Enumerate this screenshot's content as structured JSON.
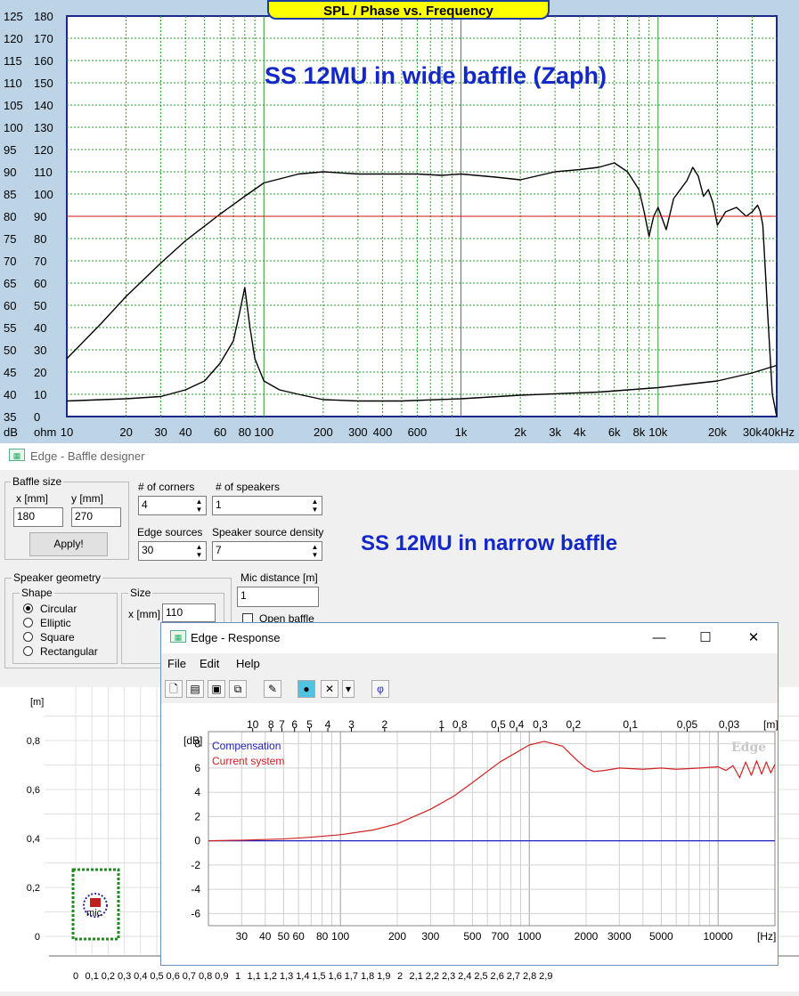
{
  "spl_chart": {
    "title": "SPL / Phase vs. Frequency",
    "subtitle": "SS 12MU in wide baffle (Zaph)",
    "db_ticks": [
      "125",
      "120",
      "115",
      "110",
      "105",
      "100",
      "95",
      "90",
      "85",
      "80",
      "75",
      "70",
      "65",
      "60",
      "55",
      "50",
      "45",
      "40",
      "35"
    ],
    "ohm_ticks": [
      "180",
      "170",
      "160",
      "150",
      "140",
      "130",
      "120",
      "110",
      "100",
      "90",
      "80",
      "70",
      "60",
      "50",
      "40",
      "30",
      "20",
      "10",
      "0"
    ],
    "db_unit": "dB",
    "ohm_unit": "ohm",
    "freq_ticks": [
      "10",
      "20",
      "30",
      "40",
      "60",
      "80",
      "100",
      "200",
      "300",
      "400",
      "600",
      "1k",
      "2k",
      "3k",
      "4k",
      "6k",
      "8k",
      "10k",
      "20k",
      "30k",
      "40kHz"
    ],
    "colors": {
      "background": "#bcd4e6",
      "plot": "#ffffff",
      "grid": "#2e9a2e",
      "ref_line": "#d01010",
      "trace": "#000000",
      "title_bg": "#ffff00",
      "subtitle": "#1428c8"
    }
  },
  "chart_data": [
    {
      "type": "line",
      "title": "SPL / Phase vs. Frequency",
      "xlabel": "",
      "ylabel": "dB",
      "xscale": "log",
      "xlim": [
        10,
        40000
      ],
      "ylim": [
        35,
        125
      ],
      "grid": true,
      "series": [
        {
          "x": [
            10,
            15,
            20,
            30,
            40,
            60,
            80,
            100,
            150,
            200,
            300,
            400,
            600,
            800,
            1000,
            1500,
            2000,
            3000,
            4000,
            5000,
            6000,
            7000,
            8000,
            8500,
            9000,
            9500,
            10000,
            11000,
            12000,
            14000,
            15000,
            16000,
            17000,
            18000,
            19000,
            20000,
            22000,
            25000,
            28000,
            30000,
            32000,
            33000,
            34000,
            35000,
            36000,
            38000,
            40000
          ],
          "y": [
            48,
            56,
            62,
            69.5,
            74.5,
            80.5,
            84.5,
            87.5,
            89.5,
            90,
            89.5,
            89.5,
            89.5,
            89.2,
            89.5,
            88.8,
            88.2,
            90,
            90.5,
            91,
            92,
            90,
            86,
            81,
            75.5,
            80,
            82,
            77,
            84,
            88,
            91,
            89,
            84.5,
            86,
            83,
            78,
            81,
            82,
            80,
            81,
            82.5,
            81,
            78,
            68,
            58,
            40,
            35
          ]
        },
        {
          "x": [
            10,
            20,
            30,
            40,
            50,
            60,
            70,
            75,
            80,
            85,
            90,
            100,
            120,
            150,
            200,
            300,
            500,
            1000,
            2000,
            5000,
            10000,
            20000,
            30000,
            40000
          ],
          "y": [
            38.5,
            39,
            39.5,
            41,
            43,
            47,
            52,
            58,
            64,
            55,
            48,
            43,
            41,
            40,
            38.8,
            38.5,
            38.5,
            39,
            39.8,
            40.5,
            41.5,
            43,
            44.8,
            46.5
          ]
        },
        {
          "x": [
            10,
            40000
          ],
          "y": [
            80,
            80
          ]
        }
      ]
    },
    {
      "type": "line",
      "xlabel": "[Hz]",
      "ylabel": "[dB]",
      "xscale": "log",
      "xlim": [
        20,
        20000
      ],
      "ylim": [
        -7,
        9
      ],
      "grid": true,
      "series": [
        {
          "name": "Compensation",
          "color": "#2020c0",
          "x": [
            20,
            20000
          ],
          "y": [
            0,
            0
          ]
        },
        {
          "name": "Current system",
          "color": "#d02020",
          "x": [
            20,
            30,
            50,
            70,
            100,
            150,
            200,
            300,
            400,
            500,
            700,
            1000,
            1200,
            1500,
            1800,
            2000,
            2200,
            2500,
            3000,
            4000,
            5000,
            6000,
            8000,
            10000,
            11000,
            12000,
            13000,
            14000,
            15000,
            16000,
            17000,
            18000,
            19000,
            20000
          ],
          "y": [
            0,
            0.05,
            0.15,
            0.3,
            0.5,
            0.9,
            1.4,
            2.6,
            3.7,
            4.8,
            6.5,
            7.9,
            8.2,
            7.8,
            6.6,
            6.0,
            5.7,
            5.8,
            6.0,
            5.9,
            6.0,
            5.9,
            6.0,
            6.1,
            5.8,
            6.2,
            5.2,
            6.5,
            5.4,
            6.6,
            5.5,
            6.5,
            5.6,
            6.3
          ]
        }
      ]
    }
  ],
  "baffle_window": {
    "title": "Edge - Baffle designer",
    "caption": "SS 12MU in narrow baffle",
    "baffle_size": {
      "group_label": "Baffle size",
      "x_label": "x [mm]",
      "y_label": "y [mm]",
      "x_value": "180",
      "y_value": "270",
      "apply_label": "Apply!"
    },
    "corners": {
      "label": "# of corners",
      "value": "4"
    },
    "speakers": {
      "label": "# of speakers",
      "value": "1"
    },
    "edge_sources": {
      "label": "Edge sources",
      "value": "30"
    },
    "speaker_density": {
      "label": "Speaker source density",
      "value": "7"
    },
    "mic_distance": {
      "label": "Mic distance [m]",
      "value": "1"
    },
    "open_baffle": {
      "label": "Open baffle",
      "checked": false
    },
    "speaker_geometry": {
      "group_label": "Speaker geometry",
      "shape_label": "Shape",
      "shapes": [
        "Circular",
        "Elliptic",
        "Square",
        "Rectangular"
      ],
      "selected_shape": "Circular",
      "size_label": "Size",
      "size_x_label": "x [mm]",
      "size_x_value": "110"
    },
    "plot": {
      "unit": "[m]",
      "y_ticks": [
        "0,8",
        "0,6",
        "0,4",
        "0,2",
        "0"
      ],
      "x_ticks": [
        "0",
        "0,1",
        "0,2",
        "0,3",
        "0,4",
        "0,5",
        "0,6",
        "0,7",
        "0,8",
        "0,9",
        "1",
        "1,1",
        "1,2",
        "1,3",
        "1,4",
        "1,5",
        "1,6",
        "1,7",
        "1,8",
        "1,9",
        "2",
        "2,1",
        "2,2",
        "2,3",
        "2,4",
        "2,5",
        "2,6",
        "2,7",
        "2,8",
        "2,9"
      ],
      "mic_label": "mic"
    }
  },
  "response_window": {
    "title": "Edge - Response",
    "controls": {
      "minimize": "—",
      "maximize": "☐",
      "close": "✕"
    },
    "menu": [
      "File",
      "Edit",
      "Help"
    ],
    "toolbar": {
      "phi": "φ"
    },
    "chart": {
      "y_unit": "[dB]",
      "x_unit": "[Hz]",
      "top_unit": "[m]",
      "watermark": "Edge",
      "legend": [
        "Compensation",
        "Current system"
      ],
      "y_ticks": [
        "8",
        "6",
        "4",
        "2",
        "0",
        "-2",
        "-4",
        "-6"
      ],
      "x_ticks": [
        "30",
        "40",
        "50",
        "60",
        "80",
        "100",
        "200",
        "300",
        "500",
        "700",
        "1000",
        "2000",
        "3000",
        "5000",
        "10000"
      ],
      "top_ticks": [
        "10",
        "8",
        "7",
        "6",
        "5",
        "4",
        "3",
        "2",
        "1",
        "0,8",
        "0,5",
        "0,4",
        "0,3",
        "0,2",
        "0,1",
        "0,05",
        "0,03"
      ]
    }
  }
}
